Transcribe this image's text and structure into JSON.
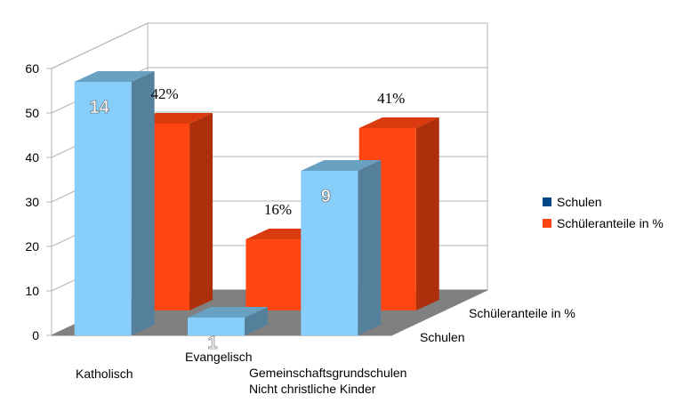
{
  "chart_data": {
    "type": "bar",
    "three_d": true,
    "categories": [
      "Katholisch",
      "Evangelisch",
      "Gemeinschaftsgrundschulen\nNicht christliche Kinder"
    ],
    "series": [
      {
        "name": "Schulen",
        "values": [
          57,
          4,
          37
        ],
        "data_labels": [
          "14",
          "1",
          "9"
        ],
        "color": "#87CEFA"
      },
      {
        "name": "Schüleranteile in %",
        "values": [
          42,
          16,
          41
        ],
        "data_labels": [
          "42%",
          "16%",
          "41%"
        ],
        "color": "#FF4511"
      }
    ],
    "depth_axis_labels": [
      "Schulen",
      "Schüleranteile in %"
    ],
    "yticks": [
      "0",
      "10",
      "20",
      "30",
      "40",
      "50",
      "60"
    ],
    "ylim": [
      0,
      60
    ],
    "grid": true,
    "legend_position": "right",
    "title": "",
    "xlabel": "",
    "ylabel": ""
  }
}
